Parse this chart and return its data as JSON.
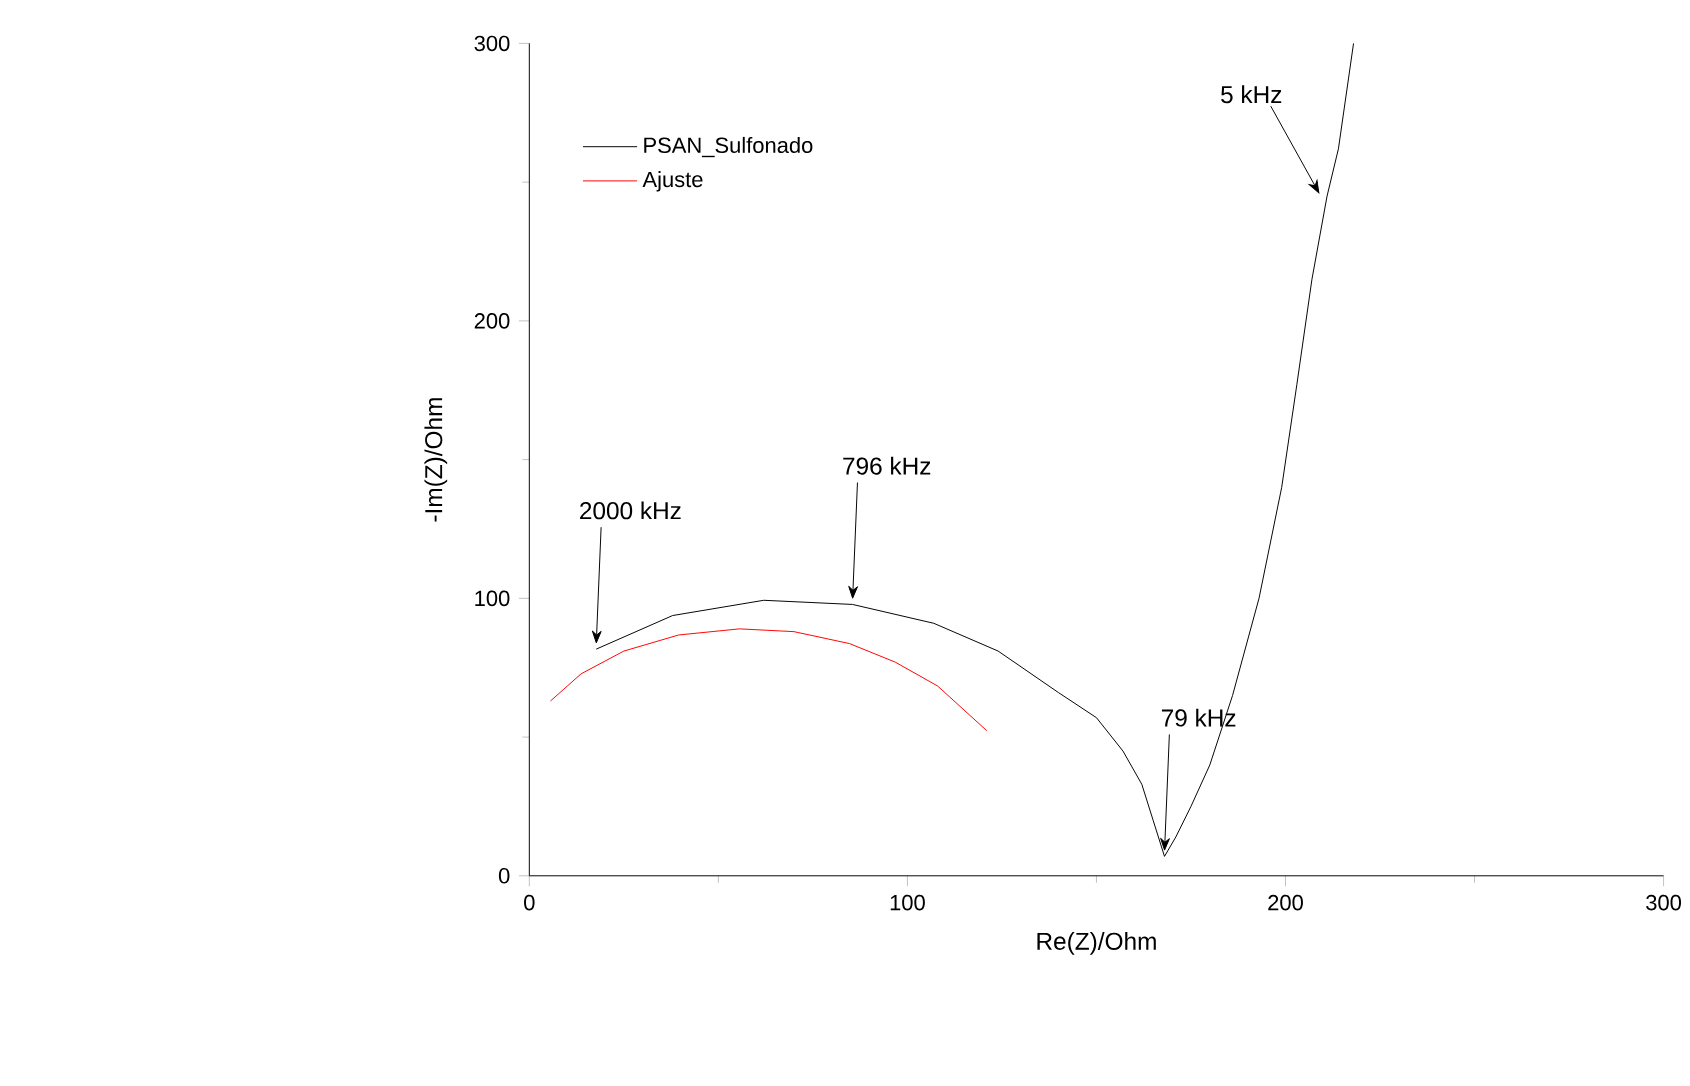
{
  "chart_data": {
    "type": "line",
    "xlabel": "Re(Z)/Ohm",
    "ylabel": "-Im(Z)/Ohm",
    "xlim": [
      0,
      300
    ],
    "ylim": [
      0,
      300
    ],
    "xticks": [
      0,
      100,
      200,
      300
    ],
    "yticks": [
      0,
      100,
      200,
      300
    ],
    "legend": "top left",
    "series": [
      {
        "name": "PSAN_Sulfonado",
        "color": "#000000",
        "x": [
          17.7,
          37.9,
          62,
          85.5,
          107,
          124,
          140,
          150,
          157,
          162,
          165,
          168,
          171,
          175,
          180,
          186,
          193,
          199,
          203,
          207,
          211,
          214,
          218
        ],
        "values": [
          81.7,
          93.8,
          99.3,
          97.8,
          91,
          81,
          66,
          57,
          45,
          33,
          20,
          7,
          14,
          25,
          40,
          65,
          100,
          140,
          177,
          215,
          245,
          262,
          300
        ]
      },
      {
        "name": "Ajuste",
        "color": "#ff0000",
        "x": [
          5.6,
          13.7,
          25,
          39.5,
          55.6,
          70,
          84.7,
          96.8,
          108,
          121
        ],
        "values": [
          63,
          72.8,
          81,
          86.8,
          89,
          88,
          83.7,
          77,
          68.4,
          52.3
        ]
      }
    ],
    "annotations": [
      {
        "text": "2000 kHz",
        "x": 17.7,
        "y": 81.7
      },
      {
        "text": "796 kHz",
        "x": 85.5,
        "y": 97.8
      },
      {
        "text": "79 kHz",
        "x": 168,
        "y": 7
      },
      {
        "text": "5 kHz",
        "x": 209,
        "y": 244
      }
    ]
  }
}
